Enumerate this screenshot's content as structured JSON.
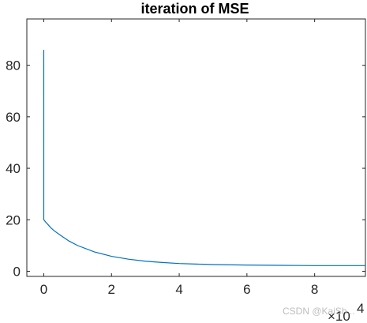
{
  "chart_data": {
    "type": "line",
    "title": "iteration of MSE",
    "xlabel": "",
    "ylabel": "",
    "xlim": [
      -0.5,
      9.5
    ],
    "ylim": [
      -2,
      98
    ],
    "x_ticks": [
      0,
      2,
      4,
      6,
      8
    ],
    "x_tick_labels": [
      "0",
      "2",
      "4",
      "6",
      "8"
    ],
    "y_ticks": [
      0,
      20,
      40,
      60,
      80
    ],
    "y_tick_labels": [
      "0",
      "20",
      "40",
      "60",
      "80"
    ],
    "x_exponent": {
      "base": "×10",
      "power": "4"
    },
    "grid": false,
    "series": [
      {
        "color": "#0072bd",
        "x": [
          0,
          0.0005,
          0.02,
          0.05,
          0.1,
          0.2,
          0.3,
          0.5,
          0.75,
          1,
          1.5,
          2,
          2.5,
          3,
          3.5,
          4,
          4.5,
          5,
          6,
          7,
          8,
          9,
          9.5
        ],
        "values": [
          86,
          20,
          19.7,
          19.2,
          18.5,
          17.0,
          15.8,
          13.9,
          11.7,
          10.0,
          7.5,
          5.8,
          4.7,
          3.9,
          3.4,
          3.0,
          2.8,
          2.6,
          2.4,
          2.3,
          2.2,
          2.2,
          2.2
        ]
      }
    ]
  },
  "watermark": "CSDN @KaiSh..."
}
